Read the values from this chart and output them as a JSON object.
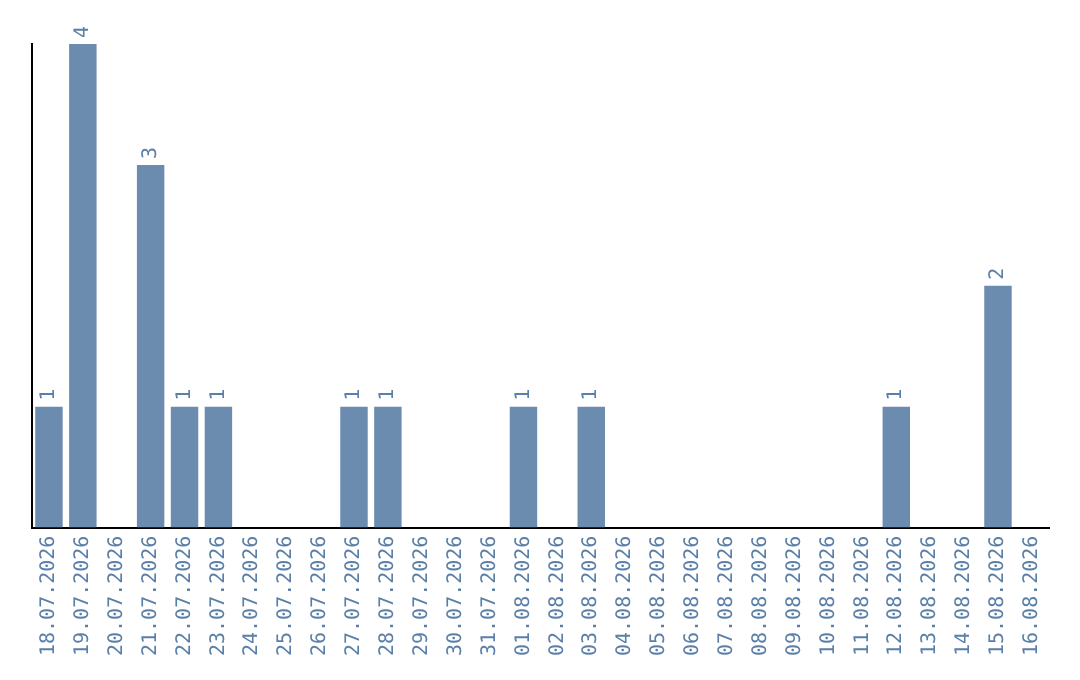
{
  "chart_data": {
    "type": "bar",
    "categories": [
      "18.07.2026",
      "19.07.2026",
      "20.07.2026",
      "21.07.2026",
      "22.07.2026",
      "23.07.2026",
      "24.07.2026",
      "25.07.2026",
      "26.07.2026",
      "27.07.2026",
      "28.07.2026",
      "29.07.2026",
      "30.07.2026",
      "31.07.2026",
      "01.08.2026",
      "02.08.2026",
      "03.08.2026",
      "04.08.2026",
      "05.08.2026",
      "06.08.2026",
      "07.08.2026",
      "08.08.2026",
      "09.08.2026",
      "10.08.2026",
      "11.08.2026",
      "12.08.2026",
      "13.08.2026",
      "14.08.2026",
      "15.08.2026",
      "16.08.2026"
    ],
    "values": [
      1,
      4,
      0,
      3,
      1,
      1,
      0,
      0,
      0,
      1,
      1,
      0,
      0,
      0,
      1,
      0,
      1,
      0,
      0,
      0,
      0,
      0,
      0,
      0,
      0,
      1,
      0,
      0,
      2,
      0
    ],
    "value_labels": [
      "1",
      "4",
      null,
      "3",
      "1",
      "1",
      null,
      null,
      null,
      "1",
      "1",
      null,
      null,
      null,
      "1",
      null,
      "1",
      null,
      null,
      null,
      null,
      null,
      null,
      null,
      null,
      "1",
      null,
      null,
      "2",
      null
    ],
    "color": "#6b8cae",
    "grid": false,
    "legend": false,
    "tick_labels": "x"
  }
}
